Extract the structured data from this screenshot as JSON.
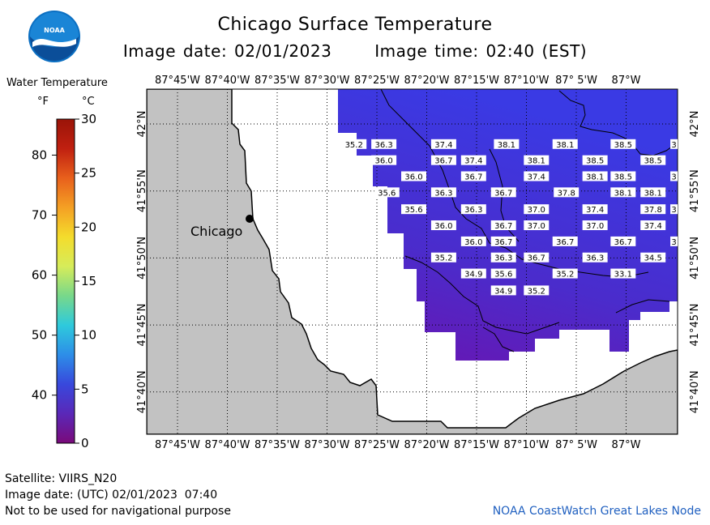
{
  "title": "Chicago Surface Temperature",
  "image_date": "Image date: 02/01/2023",
  "image_time": "Image time: 02:40 (EST)",
  "logo_text": "NOAA",
  "legend": {
    "title": "Water Temperature",
    "unit_f": "°F",
    "unit_c": "°C",
    "f_ticks": [
      {
        "label": "80",
        "f": 80
      },
      {
        "label": "70",
        "f": 70
      },
      {
        "label": "60",
        "f": 60
      },
      {
        "label": "50",
        "f": 50
      },
      {
        "label": "40",
        "f": 40
      }
    ],
    "c_ticks": [
      {
        "label": "30",
        "c": 30
      },
      {
        "label": "25",
        "c": 25
      },
      {
        "label": "20",
        "c": 20
      },
      {
        "label": "15",
        "c": 15
      },
      {
        "label": "10",
        "c": 10
      },
      {
        "label": "5",
        "c": 5
      },
      {
        "label": "0",
        "c": 0
      }
    ],
    "colors": [
      "#7a0a7a",
      "#5a28b8",
      "#3848dc",
      "#2d8ee8",
      "#2ecadc",
      "#78d88a",
      "#d6ec5a",
      "#f4dc2c",
      "#f4a024",
      "#e8601c",
      "#c02010",
      "#9a1408"
    ]
  },
  "axes": {
    "lon_labels": [
      "87°45'W",
      "87°40'W",
      "87°35'W",
      "87°30'W",
      "87°25'W",
      "87°20'W",
      "87°15'W",
      "87°10'W",
      "87° 5'W",
      "87°W"
    ],
    "lat_labels": [
      "42°N",
      "41°55'N",
      "41°50'N",
      "41°45'N",
      "41°40'N"
    ]
  },
  "city": {
    "name": "Chicago"
  },
  "temperature_labels": [
    {
      "v": "35.2",
      "lon": -87.455,
      "lat": 41.975
    },
    {
      "v": "36.3",
      "lon": -87.405,
      "lat": 41.975
    },
    {
      "v": "37.4",
      "lon": -87.305,
      "lat": 41.975
    },
    {
      "v": "38.1",
      "lon": -87.2,
      "lat": 41.975
    },
    {
      "v": "38.1",
      "lon": -87.102,
      "lat": 41.975
    },
    {
      "v": "38.5",
      "lon": -87.005,
      "lat": 41.975
    },
    {
      "v": "3",
      "lon": -86.92,
      "lat": 41.975
    },
    {
      "v": "36.0",
      "lon": -87.405,
      "lat": 41.955
    },
    {
      "v": "36.7",
      "lon": -87.305,
      "lat": 41.955
    },
    {
      "v": "37.4",
      "lon": -87.255,
      "lat": 41.955
    },
    {
      "v": "38.1",
      "lon": -87.15,
      "lat": 41.955
    },
    {
      "v": "38.5",
      "lon": -87.052,
      "lat": 41.955
    },
    {
      "v": "38.5",
      "lon": -86.955,
      "lat": 41.955
    },
    {
      "v": "36.0",
      "lon": -87.355,
      "lat": 41.935
    },
    {
      "v": "36.7",
      "lon": -87.255,
      "lat": 41.935
    },
    {
      "v": "37.4",
      "lon": -87.15,
      "lat": 41.935
    },
    {
      "v": "38.1",
      "lon": -87.052,
      "lat": 41.935
    },
    {
      "v": "38.5",
      "lon": -87.005,
      "lat": 41.935
    },
    {
      "v": "3",
      "lon": -86.92,
      "lat": 41.935
    },
    {
      "v": "35.6",
      "lon": -87.4,
      "lat": 41.915
    },
    {
      "v": "36.3",
      "lon": -87.305,
      "lat": 41.915
    },
    {
      "v": "36.7",
      "lon": -87.205,
      "lat": 41.915
    },
    {
      "v": "37.8",
      "lon": -87.1,
      "lat": 41.915
    },
    {
      "v": "38.1",
      "lon": -87.005,
      "lat": 41.915
    },
    {
      "v": "38.1",
      "lon": -86.955,
      "lat": 41.915
    },
    {
      "v": "35.6",
      "lon": -87.355,
      "lat": 41.894
    },
    {
      "v": "36.3",
      "lon": -87.255,
      "lat": 41.894
    },
    {
      "v": "37.0",
      "lon": -87.15,
      "lat": 41.894
    },
    {
      "v": "37.4",
      "lon": -87.052,
      "lat": 41.894
    },
    {
      "v": "37.8",
      "lon": -86.955,
      "lat": 41.894
    },
    {
      "v": "3",
      "lon": -86.92,
      "lat": 41.894
    },
    {
      "v": "36.0",
      "lon": -87.305,
      "lat": 41.874
    },
    {
      "v": "36.7",
      "lon": -87.205,
      "lat": 41.874
    },
    {
      "v": "37.0",
      "lon": -87.15,
      "lat": 41.874
    },
    {
      "v": "37.0",
      "lon": -87.052,
      "lat": 41.874
    },
    {
      "v": "37.4",
      "lon": -86.955,
      "lat": 41.874
    },
    {
      "v": "36.0",
      "lon": -87.255,
      "lat": 41.854
    },
    {
      "v": "36.7",
      "lon": -87.205,
      "lat": 41.854
    },
    {
      "v": "36.7",
      "lon": -87.102,
      "lat": 41.854
    },
    {
      "v": "36.7",
      "lon": -87.005,
      "lat": 41.854
    },
    {
      "v": "3",
      "lon": -86.92,
      "lat": 41.854
    },
    {
      "v": "35.2",
      "lon": -87.305,
      "lat": 41.834
    },
    {
      "v": "36.3",
      "lon": -87.205,
      "lat": 41.834
    },
    {
      "v": "36.7",
      "lon": -87.15,
      "lat": 41.834
    },
    {
      "v": "36.3",
      "lon": -87.052,
      "lat": 41.834
    },
    {
      "v": "34.5",
      "lon": -86.955,
      "lat": 41.834
    },
    {
      "v": "34.9",
      "lon": -87.255,
      "lat": 41.814
    },
    {
      "v": "35.6",
      "lon": -87.205,
      "lat": 41.814
    },
    {
      "v": "35.2",
      "lon": -87.102,
      "lat": 41.814
    },
    {
      "v": "33.1",
      "lon": -87.005,
      "lat": 41.814
    },
    {
      "v": "34.9",
      "lon": -87.205,
      "lat": 41.793
    },
    {
      "v": "35.2",
      "lon": -87.15,
      "lat": 41.793
    }
  ],
  "footer": {
    "satellite": "Satellite: VIIRS_N20",
    "utc_date": "Image date: (UTC) 02/01/2023  07:40",
    "disclaimer": "Not to be used for navigational purpose",
    "credit": "NOAA CoastWatch Great Lakes Node"
  }
}
